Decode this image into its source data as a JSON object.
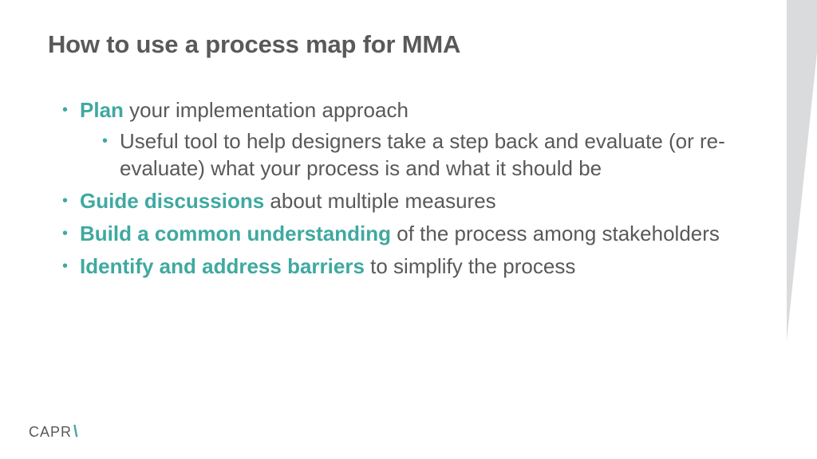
{
  "title": "How to use a process map for MMA",
  "accent_color": "#3fa9a0",
  "text_color": "#595959",
  "bullets": [
    {
      "highlight": "Plan",
      "rest": " your implementation approach",
      "sub": [
        {
          "text": "Useful tool to help designers take a step back and evaluate (or re-evaluate) what your process is and what it should be"
        }
      ]
    },
    {
      "highlight": "Guide discussions",
      "rest": " about multiple measures"
    },
    {
      "highlight": "Build a common understanding",
      "rest": " of the process among stakeholders"
    },
    {
      "highlight": "Identify and address barriers",
      "rest": " to simplify the process"
    }
  ],
  "footer": {
    "text": "CAPR",
    "slash": "\\"
  }
}
